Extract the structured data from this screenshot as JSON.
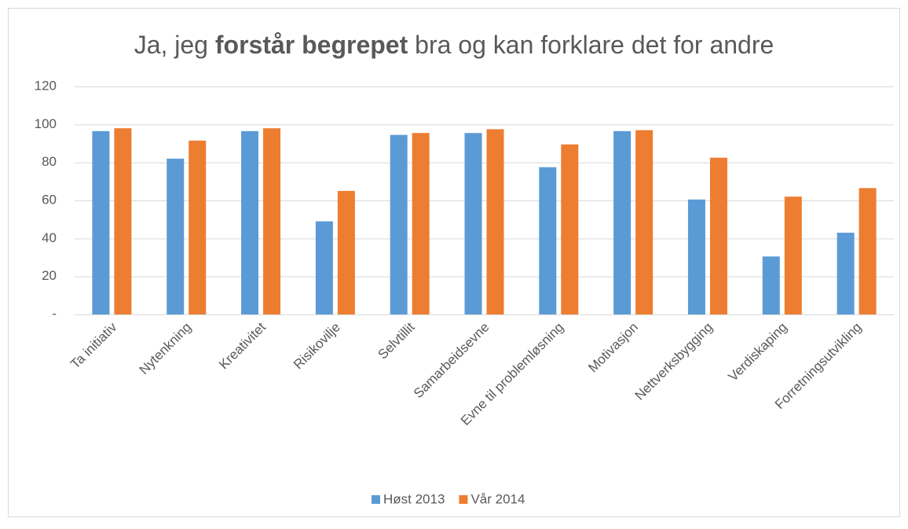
{
  "chart_data": {
    "type": "bar",
    "title": [
      "Ja, jeg",
      "forstår begrepet",
      "bra og kan forklare det for andre"
    ],
    "title_bold": [
      false,
      true,
      false
    ],
    "categories": [
      "Ta initiativ",
      "Nytenkning",
      "Kreativitet",
      "Risikovilje",
      "Selvtillit",
      "Samarbeidsevne",
      "Evne til problemløsning",
      "Motivasjon",
      "Nettverksbygging",
      "Verdiskaping",
      "Forretningsutvikling"
    ],
    "series": [
      {
        "name": "Høst 2013",
        "color": "#5b9bd5",
        "values": [
          96.5,
          82,
          96.5,
          49,
          94.5,
          95.5,
          77.5,
          96.5,
          60.5,
          30.5,
          43
        ]
      },
      {
        "name": "Vår 2014",
        "color": "#ed7d31",
        "values": [
          98,
          91.5,
          98,
          65,
          95.5,
          97.5,
          89.5,
          97,
          82.5,
          62,
          66.5
        ]
      }
    ],
    "ylim": [
      0,
      120
    ],
    "yticks": [
      {
        "value": 0,
        "label": "-"
      },
      20,
      40,
      60,
      80,
      100,
      120
    ],
    "grid": true,
    "legend": "bottom"
  }
}
